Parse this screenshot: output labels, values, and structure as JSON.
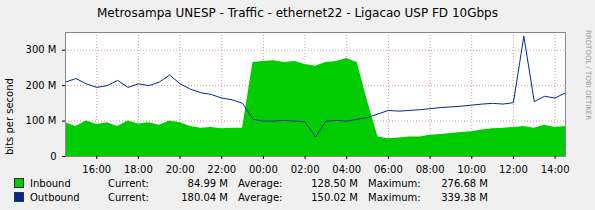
{
  "chart_data": {
    "type": "area",
    "title": "Metrosampa UNESP - Traffic - ethernet22 - Ligacao USP FD 10Gbps",
    "y_label": "bits per second",
    "annotations": [
      "RRDTOOL / TOBI OETIKER"
    ],
    "x": [
      14.5,
      15,
      15.5,
      16,
      16.5,
      17,
      17.5,
      18,
      18.5,
      19,
      19.5,
      20,
      20.5,
      21,
      21.5,
      22,
      22.5,
      23,
      23.5,
      24,
      24.5,
      25,
      25.5,
      26,
      26.5,
      27,
      27.5,
      28,
      28.5,
      29,
      29.5,
      30,
      30.5,
      31,
      31.5,
      32,
      32.5,
      33,
      33.5,
      34,
      34.5,
      35,
      35.5,
      36,
      36.5,
      37,
      37.5,
      38,
      38.5
    ],
    "xlim": [
      14.5,
      38.5
    ],
    "xticks": [
      {
        "value": 16,
        "label": "16:00"
      },
      {
        "value": 18,
        "label": "18:00"
      },
      {
        "value": 20,
        "label": "20:00"
      },
      {
        "value": 22,
        "label": "22:00"
      },
      {
        "value": 24,
        "label": "00:00"
      },
      {
        "value": 26,
        "label": "02:00"
      },
      {
        "value": 28,
        "label": "04:00"
      },
      {
        "value": 30,
        "label": "06:00"
      },
      {
        "value": 32,
        "label": "08:00"
      },
      {
        "value": 34,
        "label": "10:00"
      },
      {
        "value": 36,
        "label": "12:00"
      },
      {
        "value": 38,
        "label": "14:00"
      }
    ],
    "ylim": [
      0,
      350
    ],
    "yticks": [
      0,
      {
        "value": 100,
        "label": "100 M"
      },
      {
        "value": 200,
        "label": "200 M"
      },
      {
        "value": 300,
        "label": "300 M"
      }
    ],
    "grid": true,
    "legend": "bottom",
    "series": [
      {
        "name": "Inbound",
        "type": "area",
        "color": "#00cc00",
        "values": [
          95,
          85,
          100,
          90,
          95,
          85,
          100,
          92,
          95,
          88,
          100,
          95,
          85,
          80,
          82,
          78,
          80,
          80,
          265,
          268,
          270,
          265,
          268,
          260,
          255,
          265,
          268,
          276.68,
          265,
          155,
          55,
          50,
          52,
          55,
          55,
          60,
          62,
          65,
          68,
          70,
          75,
          78,
          80,
          82,
          85,
          80,
          88,
          82,
          85
        ],
        "stats": [
          {
            "name": "Current:",
            "value": 84.99,
            "label": "84.99 M"
          },
          {
            "name": "Average:",
            "value": 128.5,
            "label": "128.50 M"
          },
          {
            "name": "Maximum:",
            "value": 276.68,
            "label": "276.68 M"
          }
        ]
      },
      {
        "name": "Outbound",
        "type": "line",
        "color": "#002a97",
        "values": [
          210,
          220,
          205,
          195,
          200,
          215,
          195,
          205,
          200,
          210,
          230,
          205,
          190,
          180,
          175,
          165,
          160,
          150,
          105,
          100,
          100,
          102,
          100,
          98,
          55,
          100,
          102,
          100,
          105,
          110,
          120,
          130,
          128,
          130,
          132,
          135,
          138,
          140,
          142,
          145,
          148,
          150,
          148,
          152,
          339.38,
          155,
          170,
          165,
          180
        ],
        "stats": [
          {
            "name": "Current:",
            "value": 180.04,
            "label": "180.04 M"
          },
          {
            "name": "Average:",
            "value": 150.02,
            "label": "150.02 M"
          },
          {
            "name": "Maximum:",
            "value": 339.38,
            "label": "339.38 M"
          }
        ]
      }
    ]
  }
}
